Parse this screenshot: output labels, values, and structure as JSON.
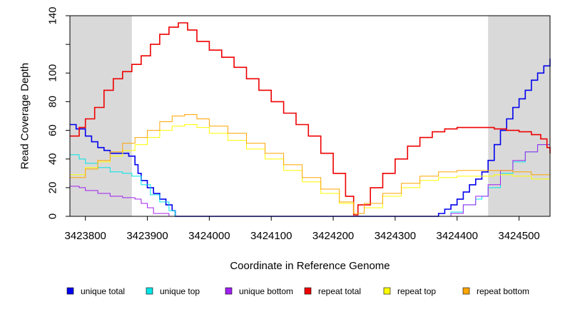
{
  "chart_data": {
    "type": "line",
    "title": "",
    "xlabel": "Coordinate in Reference Genome",
    "ylabel": "Read Coverage Depth",
    "xlim": [
      3423775,
      3424550
    ],
    "ylim": [
      0,
      140
    ],
    "x_ticks": [
      3423800,
      3423900,
      3424000,
      3424100,
      3424200,
      3424300,
      3424400,
      3424500
    ],
    "y_ticks": [
      0,
      20,
      40,
      60,
      80,
      100,
      140
    ],
    "grid": false,
    "legend_position": "bottom",
    "shaded_regions": [
      {
        "x_start": 3423775,
        "x_end": 3423875
      },
      {
        "x_start": 3424450,
        "x_end": 3424550
      }
    ],
    "series": [
      {
        "name": "unique total",
        "color": "#0000ee",
        "x": [
          3423775,
          3423785,
          3423800,
          3423810,
          3423820,
          3423830,
          3423840,
          3423860,
          3423870,
          3423880,
          3423885,
          3423890,
          3423900,
          3423910,
          3423920,
          3423930,
          3423940,
          3423945,
          3424360,
          3424370,
          3424380,
          3424390,
          3424400,
          3424410,
          3424420,
          3424430,
          3424440,
          3424450,
          3424460,
          3424470,
          3424480,
          3424490,
          3424500,
          3424510,
          3424520,
          3424530,
          3424540,
          3424550
        ],
        "values": [
          64,
          61,
          56,
          52,
          48,
          46,
          44,
          44,
          42,
          36,
          30,
          25,
          20,
          16,
          12,
          8,
          4,
          0,
          0,
          2,
          5,
          8,
          12,
          17,
          22,
          26,
          31,
          39,
          50,
          60,
          68,
          76,
          82,
          88,
          95,
          100,
          105,
          110
        ]
      },
      {
        "name": "unique top",
        "color": "#00e5e5",
        "x": [
          3423775,
          3423790,
          3423800,
          3423820,
          3423840,
          3423860,
          3423875,
          3423890,
          3423905,
          3423920,
          3423935,
          3423945,
          3424380,
          3424390,
          3424410,
          3424430,
          3424440,
          3424450,
          3424470,
          3424490,
          3424510,
          3424530,
          3424550
        ],
        "values": [
          43,
          40,
          37,
          34,
          31,
          30,
          28,
          22,
          15,
          10,
          4,
          0,
          0,
          3,
          8,
          12,
          14,
          20,
          30,
          38,
          45,
          50,
          54
        ]
      },
      {
        "name": "unique bottom",
        "color": "#a020f0",
        "x": [
          3423775,
          3423790,
          3423800,
          3423820,
          3423840,
          3423860,
          3423880,
          3423890,
          3423900,
          3423910,
          3423920,
          3423935,
          3424375,
          3424390,
          3424410,
          3424430,
          3424450,
          3424470,
          3424490,
          3424510,
          3424530,
          3424550
        ],
        "values": [
          21,
          20,
          18,
          16,
          14,
          13,
          12,
          9,
          6,
          2,
          2,
          0,
          0,
          2,
          8,
          14,
          22,
          32,
          39,
          45,
          50,
          55
        ]
      },
      {
        "name": "repeat total",
        "color": "#ee0000",
        "x": [
          3423775,
          3423790,
          3423800,
          3423815,
          3423830,
          3423845,
          3423860,
          3423875,
          3423890,
          3423905,
          3423920,
          3423935,
          3423950,
          3423965,
          3423980,
          3424000,
          3424020,
          3424040,
          3424060,
          3424080,
          3424100,
          3424120,
          3424140,
          3424160,
          3424180,
          3424200,
          3424220,
          3424233,
          3424240,
          3424260,
          3424280,
          3424300,
          3424320,
          3424340,
          3424360,
          3424380,
          3424400,
          3424420,
          3424440,
          3424460,
          3424480,
          3424500,
          3424520,
          3424535,
          3424545,
          3424550
        ],
        "values": [
          56,
          62,
          68,
          76,
          88,
          96,
          101,
          106,
          112,
          120,
          127,
          132,
          135,
          130,
          122,
          116,
          111,
          104,
          96,
          88,
          80,
          72,
          64,
          56,
          44,
          30,
          14,
          1,
          8,
          20,
          30,
          40,
          49,
          55,
          59,
          61,
          62,
          62,
          62,
          61,
          60,
          59,
          57,
          54,
          48,
          44
        ]
      },
      {
        "name": "repeat top",
        "color": "#ffff00",
        "x": [
          3423775,
          3423800,
          3423820,
          3423840,
          3423860,
          3423880,
          3423900,
          3423920,
          3423940,
          3423960,
          3423980,
          3424000,
          3424030,
          3424060,
          3424090,
          3424120,
          3424150,
          3424180,
          3424210,
          3424233,
          3424250,
          3424280,
          3424310,
          3424340,
          3424370,
          3424400,
          3424430,
          3424460,
          3424490,
          3424520,
          3424550
        ],
        "values": [
          29,
          34,
          38,
          42,
          46,
          50,
          55,
          60,
          63,
          64,
          62,
          58,
          53,
          47,
          40,
          32,
          24,
          16,
          9,
          2,
          6,
          14,
          20,
          25,
          27,
          28,
          28,
          29,
          28,
          26,
          22
        ]
      },
      {
        "name": "repeat bottom",
        "color": "#ffa500",
        "x": [
          3423775,
          3423800,
          3423820,
          3423840,
          3423860,
          3423880,
          3423900,
          3423920,
          3423940,
          3423960,
          3423980,
          3424000,
          3424030,
          3424060,
          3424090,
          3424120,
          3424150,
          3424180,
          3424210,
          3424233,
          3424250,
          3424280,
          3424310,
          3424340,
          3424370,
          3424400,
          3424430,
          3424460,
          3424490,
          3424520,
          3424550
        ],
        "values": [
          27,
          33,
          39,
          45,
          51,
          55,
          60,
          66,
          70,
          71,
          68,
          63,
          58,
          51,
          44,
          36,
          27,
          19,
          10,
          2,
          9,
          16,
          23,
          28,
          31,
          32,
          32,
          32,
          31,
          29,
          25
        ]
      }
    ]
  }
}
